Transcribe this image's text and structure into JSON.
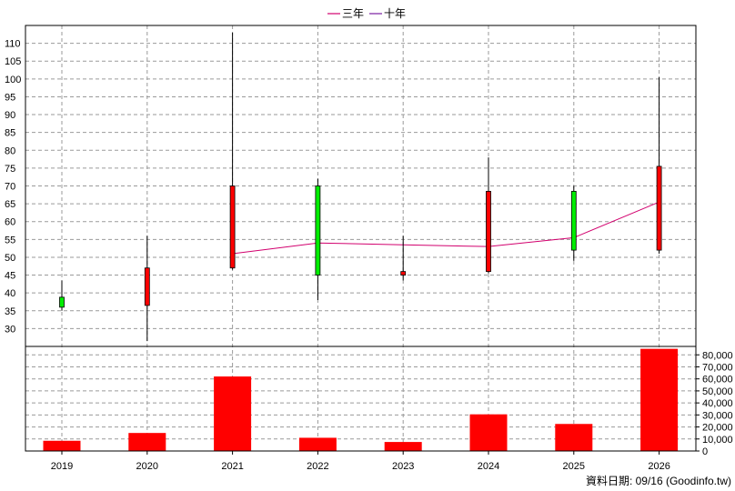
{
  "legend": [
    {
      "label": "三年",
      "color": "#d2006e"
    },
    {
      "label": "十年",
      "color": "#7a1fa2"
    }
  ],
  "footer": "資料日期: 09/16  (Goodinfo.tw)",
  "chart_data": [
    {
      "type": "candlestick",
      "categories": [
        "2019",
        "2020",
        "2021",
        "2022",
        "2023",
        "2024",
        "2025",
        "2026"
      ],
      "ohlc": [
        {
          "open": 36.0,
          "high": 43.5,
          "low": 35.0,
          "close": 38.8
        },
        {
          "open": 47.0,
          "high": 56.0,
          "low": 26.5,
          "close": 36.5
        },
        {
          "open": 70.0,
          "high": 113.0,
          "low": 46.5,
          "close": 47.0
        },
        {
          "open": 45.0,
          "high": 72.0,
          "low": 38.0,
          "close": 70.0
        },
        {
          "open": 46.0,
          "high": 56.0,
          "low": 43.5,
          "close": 45.0
        },
        {
          "open": 68.5,
          "high": 78.0,
          "low": 45.5,
          "close": 46.0
        },
        {
          "open": 52.0,
          "high": 70.0,
          "low": 49.0,
          "close": 68.5
        },
        {
          "open": 75.5,
          "high": 100.5,
          "low": 51.0,
          "close": 52.0
        }
      ],
      "up_color": "#00ee00",
      "down_color": "#ff0000",
      "series": [
        {
          "name": "三年",
          "color": "#d2006e",
          "values": [
            null,
            null,
            51.0,
            54.0,
            53.5,
            53.0,
            55.5,
            65.5
          ]
        },
        {
          "name": "十年",
          "color": "#7a1fa2",
          "values": [
            null,
            null,
            null,
            null,
            null,
            null,
            null,
            null
          ]
        }
      ],
      "y_ticks": [
        30,
        35,
        40,
        45,
        50,
        55,
        60,
        65,
        70,
        75,
        80,
        85,
        90,
        95,
        100,
        105,
        110
      ],
      "ylim": [
        25,
        115
      ],
      "grid": true,
      "legend_position": "top-center"
    },
    {
      "type": "bar",
      "categories": [
        "2019",
        "2020",
        "2021",
        "2022",
        "2023",
        "2024",
        "2025",
        "2026"
      ],
      "values": [
        8500,
        15000,
        62000,
        11000,
        7500,
        30500,
        22500,
        85000
      ],
      "bar_color": "#ff0000",
      "y_ticks": [
        0,
        10000,
        20000,
        30000,
        40000,
        50000,
        60000,
        70000,
        80000
      ],
      "y_tick_labels": [
        "0",
        "10,000",
        "20,000",
        "30,000",
        "40,000",
        "50,000",
        "60,000",
        "70,000",
        "80,000"
      ],
      "ylim": [
        0,
        87000
      ],
      "grid": true
    }
  ]
}
